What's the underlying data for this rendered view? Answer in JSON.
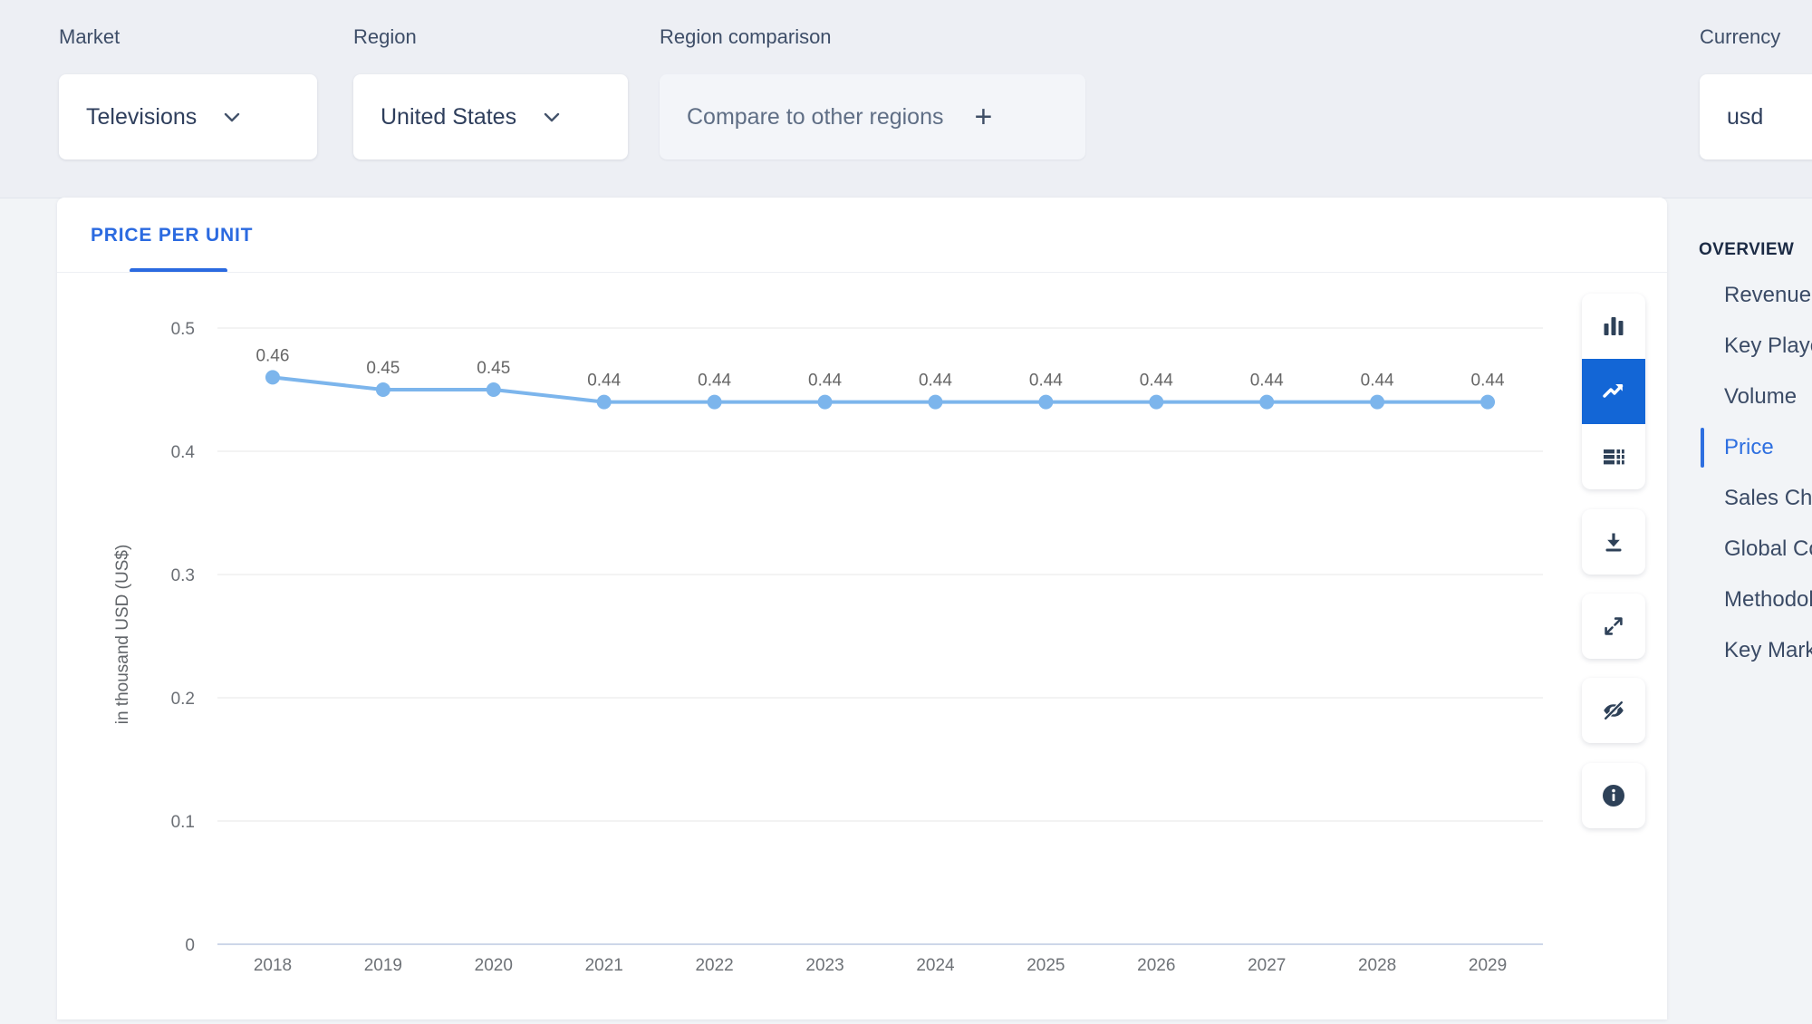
{
  "header": {
    "market": {
      "label": "Market",
      "value": "Televisions"
    },
    "region": {
      "label": "Region",
      "value": "United States"
    },
    "region_comparison": {
      "label": "Region comparison",
      "button_label": "Compare to other regions",
      "plus": "+"
    },
    "currency": {
      "label": "Currency",
      "value": "usd"
    }
  },
  "tab": {
    "label": "PRICE PER UNIT"
  },
  "chart_data": {
    "type": "line",
    "title": "Price per Unit",
    "x": [
      2018,
      2019,
      2020,
      2021,
      2022,
      2023,
      2024,
      2025,
      2026,
      2027,
      2028,
      2029
    ],
    "series": [
      {
        "name": "Price per Unit",
        "values": [
          0.46,
          0.45,
          0.45,
          0.44,
          0.44,
          0.44,
          0.44,
          0.44,
          0.44,
          0.44,
          0.44,
          0.44
        ]
      }
    ],
    "xlabel": "",
    "ylabel": "in thousand USD (US$)",
    "ylim": [
      0,
      0.5
    ],
    "yticks": [
      0,
      0.1,
      0.2,
      0.3,
      0.4,
      0.5
    ],
    "grid": true,
    "legend": false,
    "data_labels": true,
    "line_color": "#7cb5ec",
    "marker_color": "#7cb5ec",
    "data_label_color": "#666666",
    "tick_label_color": "#6b6f75",
    "gridline_color": "#e7e7e7",
    "axisline_color": "#cdd7e9"
  },
  "toolbar": {
    "icons": [
      {
        "name": "bar-chart",
        "active": false
      },
      {
        "name": "line-chart",
        "active": true
      },
      {
        "name": "table",
        "active": false
      },
      {
        "name": "download",
        "active": false
      },
      {
        "name": "expand",
        "active": false
      },
      {
        "name": "hide",
        "active": false
      },
      {
        "name": "info",
        "active": false
      }
    ]
  },
  "sidebar": {
    "heading": "OVERVIEW",
    "items": [
      {
        "label": "Revenue",
        "active": false
      },
      {
        "label": "Key Players",
        "active": false
      },
      {
        "label": "Volume",
        "active": false
      },
      {
        "label": "Price",
        "active": true
      },
      {
        "label": "Sales Channels",
        "active": false
      },
      {
        "label": "Global Comparison",
        "active": false
      },
      {
        "label": "Methodology",
        "active": false
      },
      {
        "label": "Key Market Indicators",
        "active": false
      }
    ]
  },
  "colors": {
    "accent_blue": "#2b6ae0",
    "active_button_blue": "#1366d6",
    "line_blue": "#7cb5ec"
  }
}
